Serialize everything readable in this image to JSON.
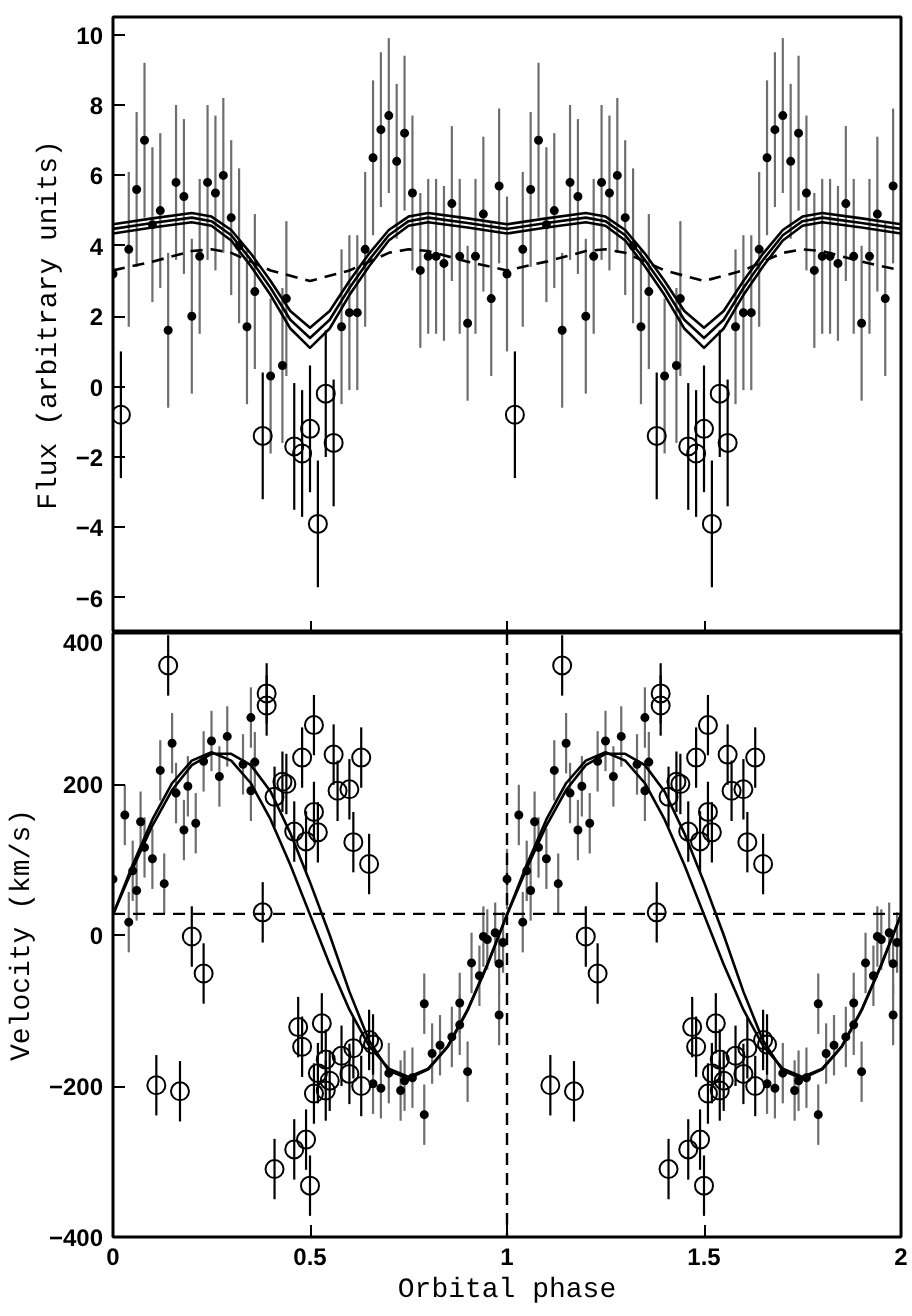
{
  "chart_data": [
    {
      "type": "scatter",
      "ylabel": "Flux (arbitrary units)",
      "xlim": [
        0,
        2
      ],
      "ylim": [
        -7,
        10.5
      ],
      "xticks": [
        0,
        0.5,
        1,
        1.5,
        2
      ],
      "yticks": [
        -6,
        -4,
        -2,
        0,
        2,
        4,
        6,
        8,
        10
      ],
      "tick_labels": "y",
      "grid": false,
      "series": [
        {
          "marker": "dot",
          "color": "#000000",
          "errors": [
            2.2,
            2.2,
            2.2,
            2.2,
            2.2,
            2.2,
            2.2,
            2.2,
            2.2,
            2.2,
            2.2,
            2.2,
            2.2,
            2.2,
            2.2,
            2.2,
            2.2,
            2.2,
            2.2,
            2.2,
            2.2,
            2.2,
            2.2,
            2.2,
            2.2,
            2.2,
            2.2,
            2.2,
            2.2,
            2.2,
            2.2,
            2.2,
            2.2,
            2.2,
            2.2,
            2.2,
            2.2,
            2.2,
            2.2,
            2.2,
            2.2,
            2.2,
            2.2,
            2.2,
            2.2,
            2.2,
            2.2,
            2.2,
            2.2,
            2.2,
            2.2,
            2.2,
            2.2,
            2.2,
            2.2,
            2.2,
            2.2,
            2.2,
            2.2,
            2.2,
            2.2,
            2.2,
            2.2,
            2.2,
            2.2,
            2.2,
            2.2,
            2.2,
            2.2,
            2.2,
            2.2,
            2.2,
            2.2,
            2.2,
            2.2,
            2.2,
            2.2,
            2.2,
            2.2,
            2.2,
            2.2,
            2.2,
            2.2,
            2.2
          ],
          "x": [
            0.0,
            0.04,
            0.06,
            0.08,
            0.1,
            0.12,
            0.14,
            0.16,
            0.18,
            0.2,
            0.22,
            0.24,
            0.26,
            0.28,
            0.3,
            0.32,
            0.34,
            0.36,
            0.4,
            0.43,
            0.44,
            0.58,
            0.6,
            0.62,
            0.64,
            0.66,
            0.68,
            0.7,
            0.72,
            0.74,
            0.76,
            0.78,
            0.8,
            0.82,
            0.84,
            0.86,
            0.88,
            0.9,
            0.92,
            0.94,
            0.96,
            0.98,
            1.0,
            1.04,
            1.06,
            1.08,
            1.1,
            1.12,
            1.14,
            1.16,
            1.18,
            1.2,
            1.22,
            1.24,
            1.26,
            1.28,
            1.3,
            1.32,
            1.34,
            1.36,
            1.4,
            1.43,
            1.44,
            1.58,
            1.6,
            1.62,
            1.64,
            1.66,
            1.68,
            1.7,
            1.72,
            1.74,
            1.76,
            1.78,
            1.8,
            1.82,
            1.84,
            1.86,
            1.88,
            1.9,
            1.92,
            1.94,
            1.96,
            1.98
          ],
          "values": [
            3.2,
            3.9,
            5.6,
            7.0,
            4.6,
            5.0,
            1.6,
            5.8,
            5.4,
            2.0,
            3.7,
            5.8,
            5.5,
            6.0,
            4.8,
            4.0,
            1.7,
            2.7,
            0.3,
            0.6,
            2.5,
            1.7,
            2.1,
            2.1,
            3.9,
            6.5,
            7.3,
            7.7,
            6.4,
            7.2,
            5.5,
            3.3,
            3.7,
            3.7,
            3.5,
            5.2,
            3.7,
            1.8,
            3.7,
            4.9,
            2.5,
            5.7,
            3.2,
            3.9,
            5.6,
            7.0,
            4.6,
            5.0,
            1.6,
            5.8,
            5.4,
            2.0,
            3.7,
            5.8,
            5.5,
            6.0,
            4.8,
            4.0,
            1.7,
            2.7,
            0.3,
            0.6,
            2.5,
            1.7,
            2.1,
            2.1,
            3.9,
            6.5,
            7.3,
            7.7,
            6.4,
            7.2,
            5.5,
            3.3,
            3.7,
            3.7,
            3.5,
            5.2,
            3.7,
            1.8,
            3.7,
            4.9,
            2.5,
            5.7
          ]
        },
        {
          "marker": "circle",
          "color": "#000000",
          "errors": [
            1.8,
            1.8,
            1.8,
            1.8,
            1.8,
            1.8,
            1.8,
            1.8,
            1.8,
            1.8,
            1.8,
            1.8,
            1.8,
            1.8,
            1.8,
            1.8
          ],
          "x": [
            0.02,
            0.38,
            0.46,
            0.48,
            0.5,
            0.52,
            0.54,
            0.56,
            1.02,
            1.38,
            1.46,
            1.48,
            1.5,
            1.52,
            1.54,
            1.56
          ],
          "values": [
            -0.8,
            -1.4,
            -1.7,
            -1.9,
            -1.2,
            -3.9,
            -0.2,
            -1.6,
            -0.8,
            -1.4,
            -1.7,
            -1.9,
            -1.2,
            -3.9,
            -0.2,
            -1.6
          ]
        },
        {
          "type": "line",
          "line_style": "solid",
          "color": "#000000",
          "x": [
            0,
            0.1,
            0.2,
            0.25,
            0.3,
            0.35,
            0.4,
            0.45,
            0.5,
            0.55,
            0.6,
            0.65,
            0.7,
            0.75,
            0.8,
            0.9,
            1.0,
            1.1,
            1.2,
            1.25,
            1.3,
            1.35,
            1.4,
            1.45,
            1.5,
            1.55,
            1.6,
            1.65,
            1.7,
            1.75,
            1.8,
            1.9,
            2.0
          ],
          "values": [
            4.61,
            4.78,
            4.93,
            4.83,
            4.45,
            3.78,
            3.0,
            2.15,
            1.67,
            2.15,
            3.0,
            3.78,
            4.45,
            4.83,
            4.93,
            4.78,
            4.61,
            4.78,
            4.93,
            4.83,
            4.45,
            3.78,
            3.0,
            2.15,
            1.67,
            2.15,
            3.0,
            3.78,
            4.45,
            4.83,
            4.93,
            4.78,
            4.61
          ]
        },
        {
          "type": "line",
          "line_style": "solid",
          "color": "#000000",
          "x": [
            0,
            0.1,
            0.2,
            0.25,
            0.3,
            0.35,
            0.4,
            0.45,
            0.5,
            0.55,
            0.6,
            0.65,
            0.7,
            0.75,
            0.8,
            0.9,
            1.0,
            1.1,
            1.2,
            1.25,
            1.3,
            1.35,
            1.4,
            1.45,
            1.5,
            1.55,
            1.6,
            1.65,
            1.7,
            1.75,
            1.8,
            1.9,
            2.0
          ],
          "values": [
            4.48,
            4.65,
            4.8,
            4.7,
            4.3,
            3.6,
            2.8,
            1.9,
            1.38,
            1.9,
            2.8,
            3.6,
            4.3,
            4.7,
            4.8,
            4.65,
            4.48,
            4.65,
            4.8,
            4.7,
            4.3,
            3.6,
            2.8,
            1.9,
            1.38,
            1.9,
            2.8,
            3.6,
            4.3,
            4.7,
            4.8,
            4.65,
            4.48
          ]
        },
        {
          "type": "line",
          "line_style": "solid",
          "color": "#000000",
          "x": [
            0,
            0.1,
            0.2,
            0.25,
            0.3,
            0.35,
            0.4,
            0.45,
            0.5,
            0.55,
            0.6,
            0.65,
            0.7,
            0.75,
            0.8,
            0.9,
            1.0,
            1.1,
            1.2,
            1.25,
            1.3,
            1.35,
            1.4,
            1.45,
            1.5,
            1.55,
            1.6,
            1.65,
            1.7,
            1.75,
            1.8,
            1.9,
            2.0
          ],
          "values": [
            4.35,
            4.52,
            4.67,
            4.57,
            4.15,
            3.42,
            2.6,
            1.65,
            1.1,
            1.65,
            2.6,
            3.42,
            4.15,
            4.57,
            4.67,
            4.52,
            4.35,
            4.52,
            4.67,
            4.57,
            4.15,
            3.42,
            2.6,
            1.65,
            1.1,
            1.65,
            2.6,
            3.42,
            4.15,
            4.57,
            4.67,
            4.52,
            4.35
          ]
        },
        {
          "type": "line",
          "line_style": "dashed",
          "color": "#000000",
          "x": [
            0,
            0.1,
            0.2,
            0.25,
            0.3,
            0.4,
            0.5,
            0.6,
            0.7,
            0.75,
            0.8,
            0.9,
            1.0,
            1.1,
            1.2,
            1.25,
            1.3,
            1.4,
            1.5,
            1.6,
            1.7,
            1.75,
            1.8,
            1.9,
            2.0
          ],
          "values": [
            3.3,
            3.55,
            3.85,
            3.9,
            3.8,
            3.3,
            3.0,
            3.3,
            3.8,
            3.9,
            3.85,
            3.55,
            3.3,
            3.55,
            3.85,
            3.9,
            3.8,
            3.3,
            3.0,
            3.3,
            3.8,
            3.9,
            3.85,
            3.55,
            3.3
          ]
        }
      ]
    },
    {
      "type": "scatter",
      "xlabel": "Orbital phase",
      "ylabel": "Velocity (km/s)",
      "xlim": [
        0,
        2
      ],
      "ylim": [
        -400,
        400
      ],
      "xticks": [
        0,
        0.5,
        1,
        1.5,
        2
      ],
      "yticks": [
        -400,
        -200,
        0,
        200,
        400
      ],
      "grid": false,
      "ref_lines": [
        {
          "axis": "y",
          "value": 28,
          "line_style": "dashed",
          "color": "#000000"
        },
        {
          "axis": "x",
          "value": 1,
          "line_style": "dashed",
          "color": "#000000"
        }
      ],
      "series": [
        {
          "marker": "dot",
          "color": "#000000",
          "errors": [
            40,
            40,
            40,
            40,
            40,
            40,
            40,
            40,
            40,
            40,
            40,
            40,
            40,
            40,
            40,
            40,
            40,
            40,
            40,
            40,
            40,
            40,
            40,
            40,
            40,
            40,
            40,
            40,
            40,
            40,
            40,
            40,
            40,
            40,
            40,
            40,
            40,
            40,
            40,
            40,
            40,
            40,
            40,
            40,
            40,
            40,
            40,
            40,
            40,
            40,
            40,
            40,
            40,
            40,
            40,
            40,
            40,
            40,
            40,
            40,
            40,
            40,
            40,
            40,
            40,
            40,
            40,
            40,
            40,
            40,
            40,
            40,
            40,
            40,
            40,
            40,
            40,
            40,
            40,
            40,
            40,
            40,
            40,
            40,
            40,
            40,
            40,
            40,
            40,
            40
          ],
          "x": [
            0.0,
            0.03,
            0.04,
            0.05,
            0.06,
            0.07,
            0.08,
            0.1,
            0.12,
            0.13,
            0.15,
            0.16,
            0.18,
            0.19,
            0.21,
            0.23,
            0.25,
            0.27,
            0.29,
            0.33,
            0.35,
            0.35,
            0.36,
            0.66,
            0.68,
            0.7,
            0.73,
            0.74,
            0.76,
            0.79,
            0.79,
            0.81,
            0.83,
            0.86,
            0.88,
            0.88,
            0.9,
            0.91,
            0.93,
            0.94,
            0.95,
            0.97,
            0.98,
            0.98,
            0.99,
            1.0,
            1.03,
            1.04,
            1.05,
            1.06,
            1.07,
            1.08,
            1.1,
            1.12,
            1.13,
            1.15,
            1.16,
            1.18,
            1.19,
            1.21,
            1.23,
            1.25,
            1.27,
            1.29,
            1.33,
            1.35,
            1.35,
            1.36,
            1.66,
            1.68,
            1.7,
            1.73,
            1.74,
            1.76,
            1.79,
            1.79,
            1.81,
            1.83,
            1.86,
            1.88,
            1.88,
            1.9,
            1.91,
            1.93,
            1.94,
            1.95,
            1.97,
            1.98,
            1.98,
            1.99
          ],
          "values": [
            74,
            159,
            17,
            85,
            59,
            150,
            116,
            101,
            218,
            68,
            254,
            188,
            139,
            197,
            148,
            230,
            257,
            210,
            263,
            226,
            288,
            191,
            229,
            -197,
            -203,
            -183,
            -206,
            -193,
            -189,
            -238,
            -91,
            -157,
            -146,
            -135,
            -90,
            -119,
            -181,
            -37,
            -54,
            -2,
            -6,
            3,
            -38,
            -106,
            -10,
            74,
            159,
            17,
            85,
            59,
            150,
            116,
            101,
            218,
            68,
            254,
            188,
            139,
            197,
            148,
            230,
            257,
            210,
            263,
            226,
            288,
            191,
            229,
            -197,
            -203,
            -183,
            -206,
            -193,
            -189,
            -238,
            -91,
            -157,
            -146,
            -135,
            -90,
            -119,
            -181,
            -37,
            -54,
            -2,
            -6,
            3,
            -38,
            -106,
            -10
          ]
        },
        {
          "marker": "circle",
          "color": "#000000",
          "errors": [
            40,
            40,
            40,
            40,
            40,
            40,
            40,
            40,
            40,
            40,
            40,
            40,
            40,
            40,
            40,
            40,
            40,
            40,
            40,
            40,
            40,
            40,
            40,
            40,
            40,
            40,
            40,
            40,
            40,
            40,
            40,
            40,
            40,
            40,
            40,
            40,
            40,
            40,
            40,
            40,
            40,
            40,
            40,
            40,
            40,
            40,
            40,
            40,
            40,
            40,
            40,
            40,
            40,
            40,
            40,
            40,
            40,
            40,
            40,
            40,
            40,
            40,
            40,
            40,
            40,
            40,
            40,
            40,
            40,
            40,
            40,
            40,
            40,
            40,
            40,
            40,
            40,
            40,
            40,
            40,
            40,
            40
          ],
          "x": [
            0.11,
            0.14,
            0.17,
            0.2,
            0.23,
            0.38,
            0.39,
            0.39,
            0.41,
            0.41,
            0.43,
            0.44,
            0.46,
            0.46,
            0.47,
            0.48,
            0.48,
            0.49,
            0.49,
            0.5,
            0.51,
            0.51,
            0.51,
            0.52,
            0.52,
            0.53,
            0.54,
            0.54,
            0.55,
            0.56,
            0.57,
            0.58,
            0.6,
            0.6,
            0.61,
            0.61,
            0.63,
            0.63,
            0.65,
            0.65,
            0.66,
            1.11,
            1.14,
            1.17,
            1.2,
            1.23,
            1.38,
            1.39,
            1.39,
            1.41,
            1.41,
            1.43,
            1.44,
            1.46,
            1.46,
            1.47,
            1.48,
            1.48,
            1.49,
            1.49,
            1.5,
            1.51,
            1.51,
            1.51,
            1.52,
            1.52,
            1.53,
            1.54,
            1.54,
            1.55,
            1.56,
            1.57,
            1.58,
            1.6,
            1.6,
            1.61,
            1.61,
            1.63,
            1.63,
            1.65,
            1.65,
            1.66
          ],
          "values": [
            -199,
            357,
            -207,
            -2,
            -51,
            30,
            320,
            304,
            183,
            -310,
            203,
            200,
            137,
            -284,
            -122,
            235,
            -148,
            124,
            -271,
            -332,
            163,
            278,
            -210,
            136,
            -183,
            -117,
            -206,
            -165,
            -193,
            239,
            191,
            -160,
            193,
            -184,
            123,
            -150,
            235,
            -200,
            94,
            -139,
            -145,
            -199,
            357,
            -207,
            -2,
            -51,
            30,
            320,
            304,
            183,
            -310,
            203,
            200,
            137,
            -284,
            -122,
            235,
            -148,
            124,
            -271,
            -332,
            163,
            278,
            -210,
            136,
            -183,
            -117,
            -206,
            -165,
            -193,
            239,
            191,
            -160,
            193,
            -184,
            123,
            -150,
            235,
            -200,
            94,
            -139,
            -145
          ]
        },
        {
          "type": "line",
          "line_style": "solid",
          "color": "#000000",
          "x": [
            0,
            0.05,
            0.1,
            0.15,
            0.2,
            0.25,
            0.3,
            0.35,
            0.4,
            0.45,
            0.5,
            0.55,
            0.6,
            0.65,
            0.7,
            0.75,
            0.8,
            0.85,
            0.9,
            0.95,
            1.0,
            1.05,
            1.1,
            1.15,
            1.2,
            1.25,
            1.3,
            1.35,
            1.4,
            1.45,
            1.5,
            1.55,
            1.6,
            1.65,
            1.7,
            1.75,
            1.8,
            1.85,
            1.9,
            1.95,
            2.0
          ],
          "values": [
            27,
            93,
            153,
            201,
            231,
            242,
            231,
            201,
            153,
            93,
            27,
            -39,
            -99,
            -147,
            -177,
            -188,
            -177,
            -147,
            -99,
            -39,
            27,
            93,
            153,
            201,
            231,
            242,
            231,
            201,
            153,
            93,
            27,
            -39,
            -99,
            -147,
            -177,
            -188,
            -177,
            -147,
            -99,
            -39,
            27
          ]
        },
        {
          "type": "line",
          "line_style": "solid",
          "color": "#000000",
          "x": [
            0,
            0.05,
            0.1,
            0.15,
            0.2,
            0.25,
            0.3,
            0.35,
            0.4,
            0.45,
            0.5,
            0.55,
            0.6,
            0.65,
            0.7,
            0.75,
            0.8,
            0.85,
            0.9,
            0.95,
            1.0,
            1.05,
            1.1,
            1.15,
            1.2,
            1.25,
            1.3,
            1.35,
            1.4,
            1.45,
            1.5,
            1.55,
            1.6,
            1.65,
            1.7,
            1.75,
            1.8,
            1.85,
            1.9,
            1.95,
            2.0
          ],
          "values": [
            27,
            88,
            145,
            192,
            225,
            240,
            240,
            225,
            190,
            135,
            70,
            0,
            -75,
            -140,
            -180,
            -190,
            -178,
            -148,
            -100,
            -40,
            27,
            88,
            145,
            192,
            225,
            240,
            240,
            225,
            190,
            135,
            70,
            0,
            -75,
            -140,
            -180,
            -190,
            -178,
            -148,
            -100,
            -40,
            27
          ]
        }
      ]
    }
  ]
}
